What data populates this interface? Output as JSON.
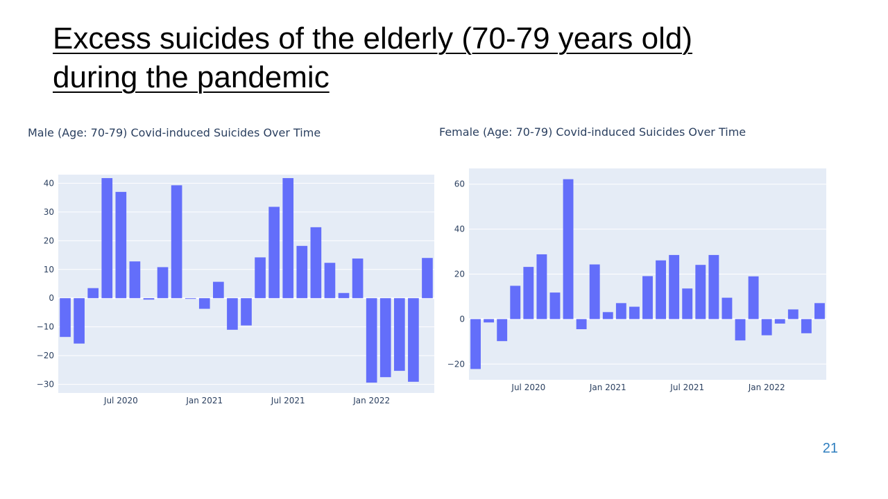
{
  "slide": {
    "title_line1": "Excess suicides of the elderly (70-79 years old)",
    "title_line2": "during the pandemic",
    "page_number": "21"
  },
  "colors": {
    "bar": "#636efa",
    "plot_background": "#e5ecf6",
    "gridline": "#ffffff",
    "tick_text": "#2a3f5f"
  },
  "chart_data": [
    {
      "type": "bar",
      "title": "Male (Age: 70-79) Covid-induced Suicides Over Time",
      "x": [
        "2020-03",
        "2020-04",
        "2020-05",
        "2020-06",
        "2020-07",
        "2020-08",
        "2020-09",
        "2020-10",
        "2020-11",
        "2020-12",
        "2021-01",
        "2021-02",
        "2021-03",
        "2021-04",
        "2021-05",
        "2021-06",
        "2021-07",
        "2021-08",
        "2021-09",
        "2021-10",
        "2021-11",
        "2021-12",
        "2022-01",
        "2022-02",
        "2022-03",
        "2022-04",
        "2022-05"
      ],
      "values": [
        -13.5,
        -15.8,
        3.5,
        41.8,
        37,
        12.8,
        -0.5,
        10.8,
        39.3,
        -0.2,
        -3.7,
        5.7,
        -11,
        -9.5,
        14.2,
        31.8,
        41.8,
        18.2,
        24.7,
        12.3,
        1.8,
        13.8,
        -29.4,
        -27.5,
        -25.3,
        -29.1,
        14
      ],
      "x_tick_labels": [
        "Jul 2020",
        "Jan 2021",
        "Jul 2021",
        "Jan 2022"
      ],
      "y_ticks": [
        40,
        30,
        20,
        10,
        0,
        -10,
        -20,
        -30
      ],
      "ylim": [
        -33,
        43
      ],
      "grid": true,
      "legend": "none"
    },
    {
      "type": "bar",
      "title": "Female (Age: 70-79) Covid-induced Suicides Over Time",
      "x": [
        "2020-03",
        "2020-04",
        "2020-05",
        "2020-06",
        "2020-07",
        "2020-08",
        "2020-09",
        "2020-10",
        "2020-11",
        "2020-12",
        "2021-01",
        "2021-02",
        "2021-03",
        "2021-04",
        "2021-05",
        "2021-06",
        "2021-07",
        "2021-08",
        "2021-09",
        "2021-10",
        "2021-11",
        "2021-12",
        "2022-01",
        "2022-02",
        "2022-03",
        "2022-04",
        "2022-05"
      ],
      "values": [
        -22.2,
        -1.5,
        -9.8,
        14.8,
        23.2,
        28.8,
        11.8,
        62.2,
        -4.5,
        24.3,
        3.1,
        7.1,
        5.5,
        19.1,
        26.1,
        28.5,
        13.6,
        24.1,
        28.5,
        9.5,
        -9.5,
        19,
        -7.2,
        -2,
        4.3,
        -6.3,
        7.1
      ],
      "x_tick_labels": [
        "Jul 2020",
        "Jan 2021",
        "Jul 2021",
        "Jan 2022"
      ],
      "y_ticks": [
        60,
        40,
        20,
        0,
        -20
      ],
      "ylim": [
        -27,
        67
      ],
      "grid": true,
      "legend": "none"
    }
  ]
}
